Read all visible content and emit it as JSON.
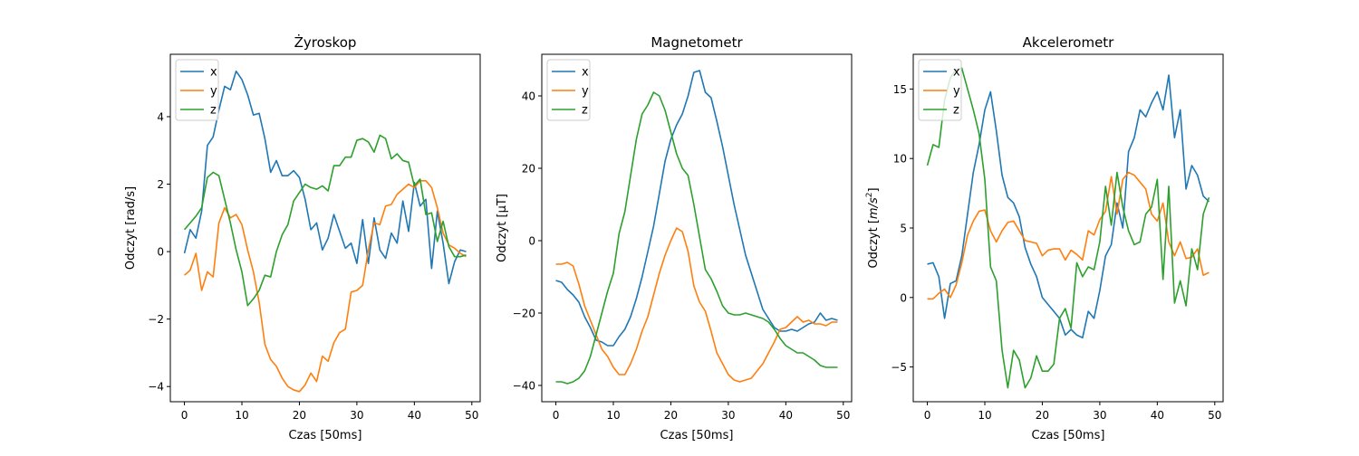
{
  "figure": {
    "background": "#ffffff"
  },
  "series_colors": {
    "x": "#1f77b4",
    "y": "#ff7f0e",
    "z": "#2ca02c"
  },
  "chart_data": [
    {
      "type": "line",
      "title": "Żyroskop",
      "xlabel": "Czas [50ms]",
      "ylabel": "Odczyt [rad/s]",
      "ylabel_math": false,
      "xlim": [
        -2.45,
        51.45
      ],
      "ylim": [
        -4.45,
        5.85
      ],
      "xticks": [
        0,
        10,
        20,
        30,
        40,
        50
      ],
      "yticks": [
        -4,
        -2,
        0,
        2,
        4
      ],
      "legend_position": "top-left",
      "series": [
        {
          "name": "x",
          "color": "#1f77b4",
          "values": [
            -0.05,
            0.65,
            0.4,
            1.2,
            3.15,
            3.4,
            4.2,
            4.9,
            4.8,
            5.35,
            5.1,
            4.65,
            4.05,
            4.1,
            3.35,
            2.35,
            2.7,
            2.25,
            2.25,
            2.4,
            2.2,
            1.55,
            0.65,
            0.85,
            0.05,
            0.4,
            1.1,
            0.6,
            0.1,
            0.25,
            -0.35,
            0.95,
            -0.35,
            1.0,
            0.05,
            -0.2,
            0.55,
            0.25,
            1.5,
            0.6,
            2.05,
            1.35,
            1.55,
            -0.5,
            1.2,
            0.25,
            -0.95,
            -0.3,
            0.05,
            0.0
          ]
        },
        {
          "name": "y",
          "color": "#ff7f0e",
          "values": [
            -0.7,
            -0.55,
            -0.05,
            -1.15,
            -0.6,
            -0.75,
            0.85,
            1.3,
            1.0,
            1.1,
            0.8,
            0.05,
            -0.6,
            -1.5,
            -2.75,
            -3.2,
            -3.4,
            -3.75,
            -4.0,
            -4.1,
            -4.15,
            -3.95,
            -3.6,
            -3.85,
            -3.1,
            -3.25,
            -2.7,
            -2.4,
            -2.3,
            -1.2,
            -1.15,
            -1.0,
            0.05,
            0.85,
            0.8,
            1.35,
            1.4,
            1.7,
            1.85,
            2.0,
            1.9,
            2.1,
            2.1,
            1.9,
            1.3,
            0.55,
            0.2,
            0.1,
            -0.05,
            -0.15
          ]
        },
        {
          "name": "z",
          "color": "#2ca02c",
          "values": [
            0.65,
            0.85,
            1.05,
            1.3,
            2.2,
            2.35,
            2.25,
            1.55,
            0.85,
            0.05,
            -0.6,
            -1.6,
            -1.4,
            -1.15,
            -0.7,
            -0.75,
            0.0,
            0.5,
            0.8,
            1.5,
            1.75,
            2.0,
            1.9,
            1.85,
            1.95,
            1.8,
            2.55,
            2.55,
            2.8,
            2.8,
            3.3,
            3.35,
            3.25,
            2.95,
            3.45,
            3.35,
            2.75,
            2.9,
            2.7,
            2.65,
            1.95,
            2.15,
            1.1,
            1.15,
            0.3,
            0.9,
            0.15,
            -0.15,
            -0.15,
            -0.1
          ]
        }
      ]
    },
    {
      "type": "line",
      "title": "Magnetometr",
      "xlabel": "Czas [50ms]",
      "ylabel": "Odczyt [μT]",
      "ylabel_math": false,
      "xlim": [
        -2.45,
        51.45
      ],
      "ylim": [
        -44.5,
        51.5
      ],
      "xticks": [
        0,
        10,
        20,
        30,
        40,
        50
      ],
      "yticks": [
        -40,
        -20,
        0,
        20,
        40
      ],
      "legend_position": "top-left",
      "series": [
        {
          "name": "x",
          "color": "#1f77b4",
          "values": [
            -11,
            -11.5,
            -13.5,
            -15,
            -17,
            -21,
            -24,
            -27.5,
            -28,
            -29,
            -29,
            -26.5,
            -24.5,
            -21,
            -16,
            -10,
            -3,
            4,
            13,
            22,
            28,
            32,
            35,
            40,
            46.5,
            47,
            41,
            39.5,
            33,
            26,
            18,
            10,
            3,
            -4,
            -9,
            -14,
            -19,
            -21.5,
            -24,
            -25,
            -25,
            -24.5,
            -25,
            -24,
            -23,
            -22.5,
            -20,
            -22,
            -21.5,
            -22
          ]
        },
        {
          "name": "y",
          "color": "#ff7f0e",
          "values": [
            -6.5,
            -6.5,
            -6,
            -7,
            -12,
            -18,
            -22,
            -26,
            -30,
            -32,
            -35,
            -37,
            -37,
            -34,
            -30,
            -25,
            -21,
            -15,
            -9,
            -4,
            0,
            3.5,
            2.5,
            -3,
            -12.5,
            -17,
            -19.5,
            -25,
            -31,
            -34,
            -37,
            -38.5,
            -39,
            -38.5,
            -38,
            -36,
            -34,
            -31,
            -28,
            -24.5,
            -24,
            -22.5,
            -21,
            -22.5,
            -22,
            -23,
            -23,
            -23.5,
            -22.5,
            -22.5
          ]
        },
        {
          "name": "z",
          "color": "#2ca02c",
          "values": [
            -39,
            -39,
            -39.5,
            -39,
            -38,
            -36,
            -32,
            -26,
            -20,
            -14,
            -9,
            2,
            8,
            18,
            28,
            35,
            37.5,
            41,
            40,
            36,
            30,
            24,
            20,
            18,
            10,
            1,
            -8,
            -10.5,
            -14,
            -18,
            -20,
            -20.5,
            -20.5,
            -20,
            -20.5,
            -21,
            -21.5,
            -22.5,
            -24.5,
            -27,
            -29,
            -30,
            -31,
            -31,
            -32,
            -33,
            -34.5,
            -35,
            -35,
            -35
          ]
        }
      ]
    },
    {
      "type": "line",
      "title": "Akcelerometr",
      "xlabel": "Czas [50ms]",
      "ylabel": "Odczyt [m/s²]",
      "ylabel_math": true,
      "xlim": [
        -2.45,
        51.45
      ],
      "ylim": [
        -7.5,
        17.5
      ],
      "xticks": [
        0,
        10,
        20,
        30,
        40,
        50
      ],
      "yticks": [
        -5,
        0,
        5,
        10,
        15
      ],
      "legend_position": "top-left",
      "series": [
        {
          "name": "x",
          "color": "#1f77b4",
          "values": [
            2.4,
            2.5,
            1.5,
            -1.5,
            1.0,
            1.2,
            3.0,
            6.0,
            9.0,
            11.0,
            13.5,
            14.8,
            12.0,
            8.8,
            7.2,
            6.8,
            5.8,
            3.6,
            2.4,
            1.5,
            0.0,
            -0.5,
            -1.0,
            -1.5,
            -2.7,
            -2.3,
            -2.7,
            -2.9,
            -1.0,
            -1.5,
            0.5,
            3.0,
            3.8,
            6.8,
            5.0,
            10.5,
            11.5,
            13.5,
            13.0,
            14.0,
            14.8,
            13.5,
            16.0,
            11.5,
            13.5,
            7.8,
            9.5,
            8.8,
            7.3,
            6.9
          ]
        },
        {
          "name": "y",
          "color": "#ff7f0e",
          "values": [
            -0.1,
            -0.1,
            0.3,
            0.6,
            0.0,
            0.9,
            2.5,
            4.5,
            5.5,
            6.2,
            6.3,
            4.8,
            4.0,
            4.8,
            5.4,
            5.5,
            4.8,
            4.1,
            4.0,
            3.9,
            3.0,
            3.4,
            3.5,
            3.5,
            2.7,
            3.4,
            3.1,
            2.7,
            4.8,
            4.5,
            5.6,
            6.2,
            8.7,
            6.0,
            8.5,
            9.0,
            8.8,
            8.3,
            7.8,
            6.0,
            5.5,
            6.8,
            4.0,
            3.0,
            4.0,
            2.8,
            2.9,
            3.5,
            1.6,
            1.8
          ]
        },
        {
          "name": "z",
          "color": "#2ca02c",
          "values": [
            9.5,
            11.0,
            10.8,
            14.2,
            15.8,
            16.4,
            16.5,
            15.0,
            13.5,
            11.8,
            8.5,
            2.2,
            1.2,
            -3.8,
            -6.5,
            -3.8,
            -4.5,
            -6.5,
            -5.8,
            -4.2,
            -5.3,
            -5.3,
            -4.8,
            -1.5,
            -0.8,
            -2.2,
            2.5,
            1.5,
            2.2,
            2.0,
            4.0,
            8.0,
            5.2,
            9.0,
            6.5,
            4.8,
            3.8,
            4.0,
            6.0,
            6.5,
            8.5,
            1.3,
            8.0,
            -0.4,
            1.2,
            -0.6,
            3.5,
            2.0,
            6.0,
            7.2
          ]
        }
      ]
    }
  ]
}
